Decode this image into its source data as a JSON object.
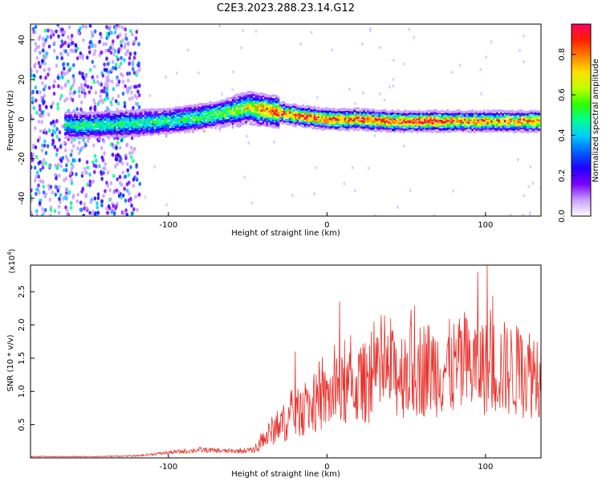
{
  "title": "C2E3.2023.288.23.14.G12",
  "chart_data": [
    {
      "type": "heatmap",
      "xlabel": "Height of straight line (km)",
      "ylabel": "Frequency (Hz)",
      "xlim": [
        -187,
        135
      ],
      "ylim": [
        -49,
        48
      ],
      "xticks": [
        -100,
        0,
        100
      ],
      "yticks": [
        -40,
        -20,
        0,
        20,
        40
      ],
      "colorbar": {
        "label": "Normalized spectral amplitude",
        "range": [
          0.0,
          0.95
        ],
        "ticks": [
          "0.0",
          "0.2",
          "0.4",
          "0.6",
          "0.8"
        ],
        "colors": [
          "#ffffff",
          "#c8a0ff",
          "#7b00ff",
          "#2200ff",
          "#0060ff",
          "#00ccff",
          "#00ff90",
          "#30ff00",
          "#c0ff00",
          "#ffe000",
          "#ff8000",
          "#ff2000",
          "#ff0060"
        ]
      },
      "ridge": {
        "x": [
          -150,
          -120,
          -100,
          -80,
          -60,
          -50,
          -40,
          -20,
          0,
          20,
          40,
          60,
          80,
          100,
          120,
          135
        ],
        "frequency": [
          -3,
          -2,
          -1,
          1,
          4,
          6,
          5,
          2,
          0,
          0,
          -1,
          -1,
          -1,
          -1,
          -1,
          -1
        ],
        "peak_amplitude": [
          0.5,
          0.5,
          0.5,
          0.55,
          0.6,
          0.7,
          0.8,
          0.9,
          0.92,
          0.9,
          0.92,
          0.95,
          0.88,
          0.8,
          0.85,
          0.85
        ]
      }
    },
    {
      "type": "line",
      "xlabel": "Height of straight line (km)",
      "ylabel": "SNR (10 * v/v)",
      "yscale_label": "(x10",
      "yscale_exponent": "4",
      "xlim": [
        -187,
        135
      ],
      "ylim": [
        0,
        2.9
      ],
      "xticks": [
        -100,
        0,
        100
      ],
      "yticks": [
        "0.5",
        "1.0",
        "1.5",
        "2.0",
        "2.5"
      ],
      "series": [
        {
          "name": "SNR",
          "color": "#e8302a",
          "x": [
            -187,
            -150,
            -120,
            -100,
            -80,
            -60,
            -45,
            -35,
            -20,
            0,
            20,
            40,
            60,
            80,
            100,
            120,
            135
          ],
          "y": [
            0.02,
            0.02,
            0.03,
            0.08,
            0.12,
            0.1,
            0.12,
            0.4,
            0.65,
            0.9,
            1.1,
            1.25,
            1.35,
            1.35,
            1.4,
            1.3,
            1.3
          ],
          "peaks": [
            [
              8,
              2.35
            ],
            [
              40,
              2.1
            ],
            [
              95,
              2.8
            ],
            [
              101,
              2.9
            ],
            [
              -20,
              1.6
            ]
          ]
        }
      ]
    }
  ]
}
